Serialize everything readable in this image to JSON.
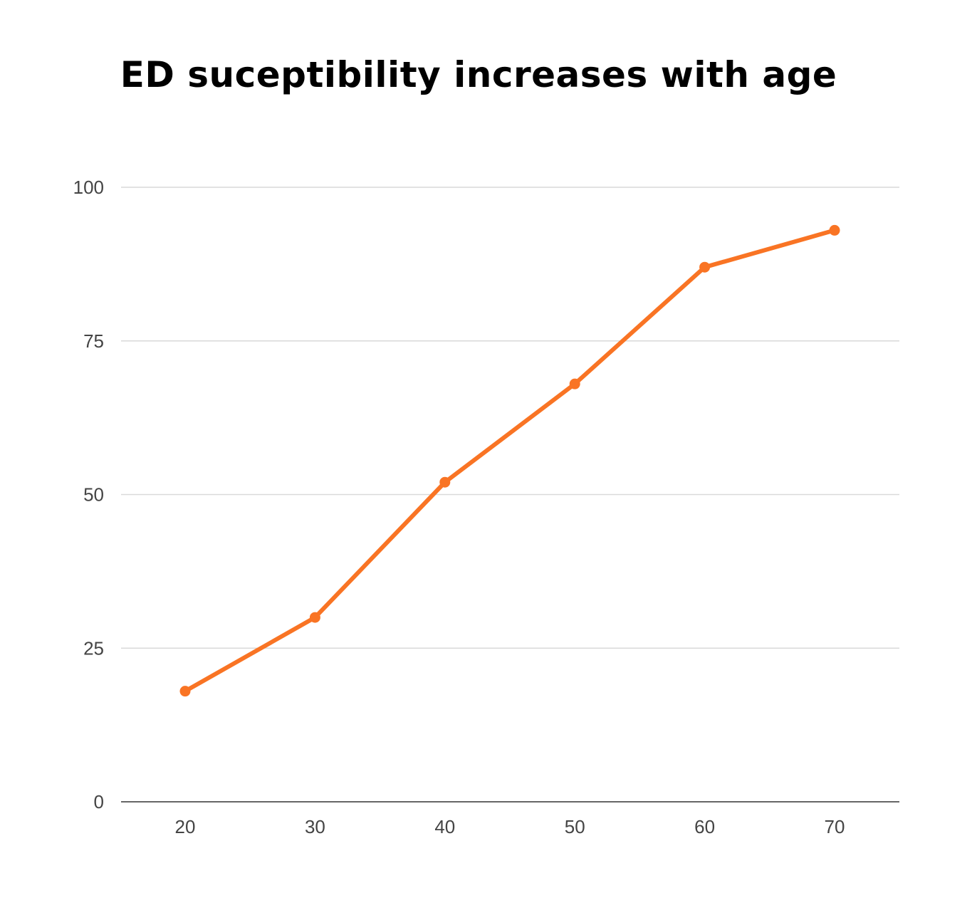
{
  "chart_data": {
    "type": "line",
    "title": "ED suceptibility increases with age",
    "xlabel": "",
    "ylabel": "",
    "x": [
      20,
      30,
      40,
      50,
      60,
      70
    ],
    "x_tick_labels": [
      "20",
      "30",
      "40",
      "50",
      "60",
      "70"
    ],
    "y_ticks": [
      0,
      25,
      50,
      75,
      100
    ],
    "y_tick_labels": [
      "0",
      "25",
      "50",
      "75",
      "100"
    ],
    "ylim": [
      0,
      100
    ],
    "grid": true,
    "legend": "none",
    "series": [
      {
        "values": [
          18,
          30,
          52,
          68,
          87,
          93
        ],
        "color": "#f97424"
      }
    ],
    "colors": {
      "gridline": "#d9d9d9",
      "baseline": "#333333",
      "series": "#f97424"
    }
  }
}
